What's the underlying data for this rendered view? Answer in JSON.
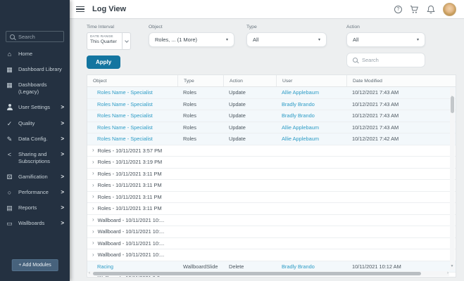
{
  "colors": {
    "accent": "#1375a0",
    "link": "#2d9cc6",
    "sidebar_bg": "#243141",
    "content_bg": "#edeff0"
  },
  "sidebar": {
    "search_placeholder": "Search",
    "items": [
      {
        "label": "Home",
        "icon": "home-icon",
        "has_submenu": false
      },
      {
        "label": "Dashboard Library",
        "icon": "dashboard-library-icon",
        "has_submenu": false
      },
      {
        "label": "Dashboards (Legacy)",
        "icon": "dashboards-legacy-icon",
        "has_submenu": false
      },
      {
        "label": "User Settings",
        "icon": "user-settings-icon",
        "has_submenu": true
      },
      {
        "label": "Quality",
        "icon": "quality-icon",
        "has_submenu": true
      },
      {
        "label": "Data Config.",
        "icon": "data-config-icon",
        "has_submenu": true
      },
      {
        "label": "Sharing and Subscriptions",
        "icon": "sharing-icon",
        "has_submenu": true
      },
      {
        "label": "Gamification",
        "icon": "gamification-icon",
        "has_submenu": true
      },
      {
        "label": "Performance",
        "icon": "performance-icon",
        "has_submenu": true
      },
      {
        "label": "Reports",
        "icon": "reports-icon",
        "has_submenu": true
      },
      {
        "label": "Wallboards",
        "icon": "wallboards-icon",
        "has_submenu": true
      }
    ],
    "add_modules_label": "+ Add Modules"
  },
  "topbar": {
    "title": "Log View",
    "icons": [
      "menu-icon",
      "help-icon",
      "cart-icon",
      "notifications-icon",
      "user-avatar"
    ]
  },
  "filters": {
    "time_interval": {
      "label": "Time Interval",
      "range_type": "DATE RANGE",
      "value": "This Quarter"
    },
    "object": {
      "label": "Object",
      "value": "Roles, ... (1 More)"
    },
    "type": {
      "label": "Type",
      "value": "All"
    },
    "action": {
      "label": "Action",
      "value": "All"
    },
    "apply_label": "Apply",
    "search_placeholder": "Search"
  },
  "table": {
    "columns": [
      "Object",
      "Type",
      "Action",
      "User",
      "Date Modified"
    ],
    "rows": [
      {
        "kind": "detail",
        "object": "Roles Name - Specialist",
        "type": "Roles",
        "action": "Update",
        "user": "Allie Applebaum",
        "date": "10/12/2021 7:43 AM"
      },
      {
        "kind": "detail",
        "object": "Roles Name - Specialist",
        "type": "Roles",
        "action": "Update",
        "user": "Bradly Brando",
        "date": "10/12/2021 7:43 AM"
      },
      {
        "kind": "detail",
        "object": "Roles Name - Specialist",
        "type": "Roles",
        "action": "Update",
        "user": "Bradly Brando",
        "date": "10/12/2021 7:43 AM"
      },
      {
        "kind": "detail",
        "object": "Roles Name - Specialist",
        "type": "Roles",
        "action": "Update",
        "user": "Allie Applebaum",
        "date": "10/12/2021 7:43 AM"
      },
      {
        "kind": "detail",
        "object": "Roles Name - Specialist",
        "type": "Roles",
        "action": "Update",
        "user": "Allie Applebaum",
        "date": "10/12/2021 7:42 AM"
      },
      {
        "kind": "group",
        "label": "Roles - 10/11/2021 3:57 PM"
      },
      {
        "kind": "group",
        "label": "Roles - 10/11/2021 3:19 PM"
      },
      {
        "kind": "group",
        "label": "Roles - 10/11/2021 3:11 PM"
      },
      {
        "kind": "group",
        "label": "Roles - 10/11/2021 3:11 PM"
      },
      {
        "kind": "group",
        "label": "Roles - 10/11/2021 3:11 PM"
      },
      {
        "kind": "group",
        "label": "Roles - 10/11/2021 3:11 PM"
      },
      {
        "kind": "group",
        "label": "Wallboard - 10/11/2021 10:..."
      },
      {
        "kind": "group",
        "label": "Wallboard - 10/11/2021 10:..."
      },
      {
        "kind": "group",
        "label": "Wallboard - 10/11/2021 10:..."
      },
      {
        "kind": "group",
        "label": "Wallboard - 10/11/2021 10:..."
      },
      {
        "kind": "detail",
        "object": "Racing",
        "type": "WallboardSlide",
        "action": "Delete",
        "user": "Bradly Brando",
        "date": "10/11/2021 10:12 AM"
      },
      {
        "kind": "group",
        "label": "Wallboard - 10/11/2021 9:3..."
      }
    ]
  }
}
